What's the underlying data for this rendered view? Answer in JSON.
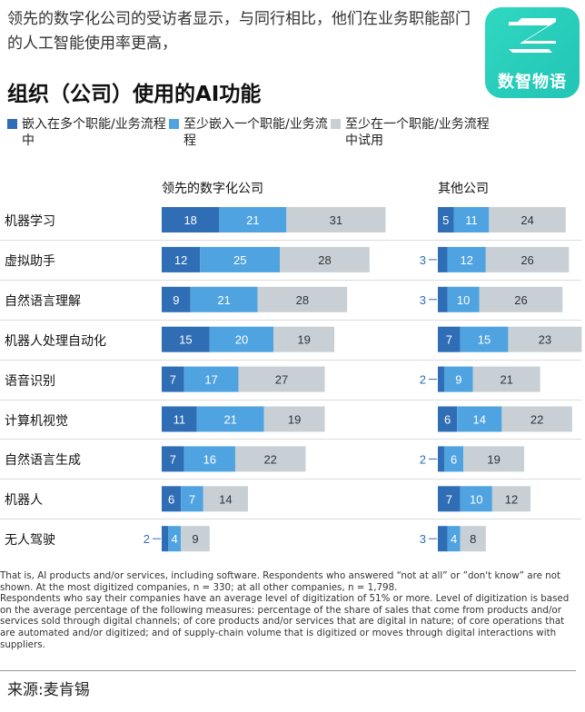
{
  "header": {
    "subtitle": "领先的数字化公司的受访者显示，与同行相比，他们在业务职能部门的人工智能使用率更高，",
    "title": "组织（公司）使用的AI功能",
    "logo_text": "数智物语"
  },
  "legend": [
    {
      "label": "嵌入在多个职能/业务流程中",
      "color": "#2f6db5"
    },
    {
      "label": "至少嵌入一个职能/业务流程",
      "color": "#4fa3e0"
    },
    {
      "label": "至少在一个职能/业务流程中试用",
      "color": "#c8d0d6"
    }
  ],
  "chart_data": {
    "type": "bar",
    "stacked": true,
    "orientation": "horizontal",
    "categories": [
      "机器学习",
      "虚拟助手",
      "自然语言理解",
      "机器人处理自动化",
      "语音识别",
      "计算机视觉",
      "自然语言生成",
      "机器人",
      "无人驾驶"
    ],
    "series_names": [
      "嵌入在多个职能/业务流程中",
      "至少嵌入一个职能/业务流程",
      "至少在一个职能/业务流程中试用"
    ],
    "colors": [
      "#2f6db5",
      "#4fa3e0",
      "#c8d0d6"
    ],
    "panels": [
      {
        "title": "领先的数字化公司",
        "series": [
          {
            "name": "嵌入在多个职能/业务流程中",
            "values": [
              18,
              12,
              9,
              15,
              7,
              11,
              7,
              6,
              2
            ]
          },
          {
            "name": "至少嵌入一个职能/业务流程",
            "values": [
              21,
              25,
              21,
              20,
              17,
              21,
              16,
              7,
              4
            ]
          },
          {
            "name": "至少在一个职能/业务流程中试用",
            "values": [
              31,
              28,
              28,
              19,
              27,
              19,
              22,
              14,
              9
            ]
          }
        ]
      },
      {
        "title": "其他公司",
        "series": [
          {
            "name": "嵌入在多个职能/业务流程中",
            "values": [
              5,
              3,
              3,
              7,
              2,
              6,
              2,
              7,
              3
            ]
          },
          {
            "name": "至少嵌入一个职能/业务流程",
            "values": [
              11,
              12,
              10,
              15,
              9,
              14,
              6,
              10,
              4
            ]
          },
          {
            "name": "至少在一个职能/业务流程中试用",
            "values": [
              24,
              26,
              26,
              23,
              21,
              22,
              19,
              12,
              8
            ]
          }
        ]
      }
    ]
  },
  "footnotes": [
    "That is, AI products and/or services, including software. Respondents who answered “not at all” or ”don't know” are not shown. At the most digitized companies, n = 330; at all other companies, n = 1,798.",
    "Respondents who say their companies have an average level of digitization of 51% or more. Level of digitization is based on the average percentage of the following measures: percentage of the share of sales that come from products and/or services sold through digital channels; of core products and/or services that are digital in nature; of core operations that are automated and/or digitized; and of supply-chain volume that is digitized or moves through digital interactions with suppliers."
  ],
  "source": "来源:麦肯锡"
}
